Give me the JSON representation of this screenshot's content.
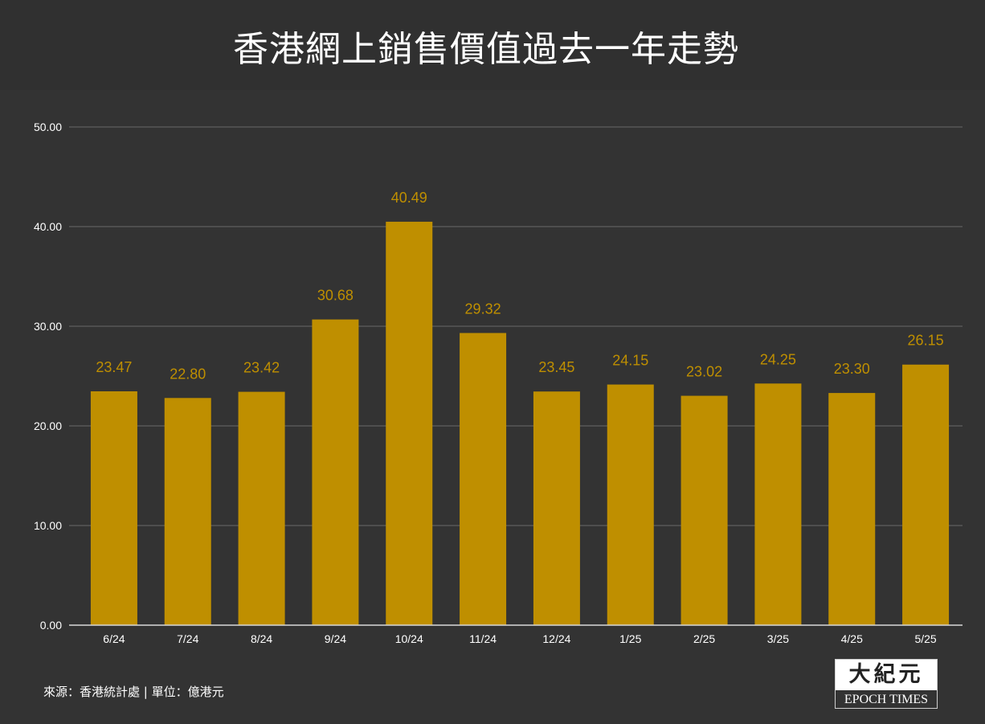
{
  "title": "香港網上銷售價值過去一年走勢",
  "source_text": "來源：香港統計處 | 單位：億港元",
  "logo": {
    "cjk": "大紀元",
    "en": "EPOCH TIMES"
  },
  "colors": {
    "bar": "#bf8f00",
    "data_label": "#bf8f00",
    "grid": "#6a6a6a",
    "axis": "#d9d9d9",
    "background": "#333333"
  },
  "chart_data": {
    "type": "bar",
    "categories": [
      "6/24",
      "7/24",
      "8/24",
      "9/24",
      "10/24",
      "11/24",
      "12/24",
      "1/25",
      "2/25",
      "3/25",
      "4/25",
      "5/25"
    ],
    "values": [
      23.47,
      22.8,
      23.42,
      30.68,
      40.49,
      29.32,
      23.45,
      24.15,
      23.02,
      24.25,
      23.3,
      26.15
    ],
    "data_labels": [
      "23.47",
      "22.80",
      "23.42",
      "30.68",
      "40.49",
      "29.32",
      "23.45",
      "24.15",
      "23.02",
      "24.25",
      "23.30",
      "26.15"
    ],
    "y_ticks": [
      0,
      10,
      20,
      30,
      40,
      50
    ],
    "y_tick_labels": [
      "0.00",
      "10.00",
      "20.00",
      "30.00",
      "40.00",
      "50.00"
    ],
    "ylim": [
      0,
      50
    ],
    "grid": true,
    "legend": "none"
  }
}
